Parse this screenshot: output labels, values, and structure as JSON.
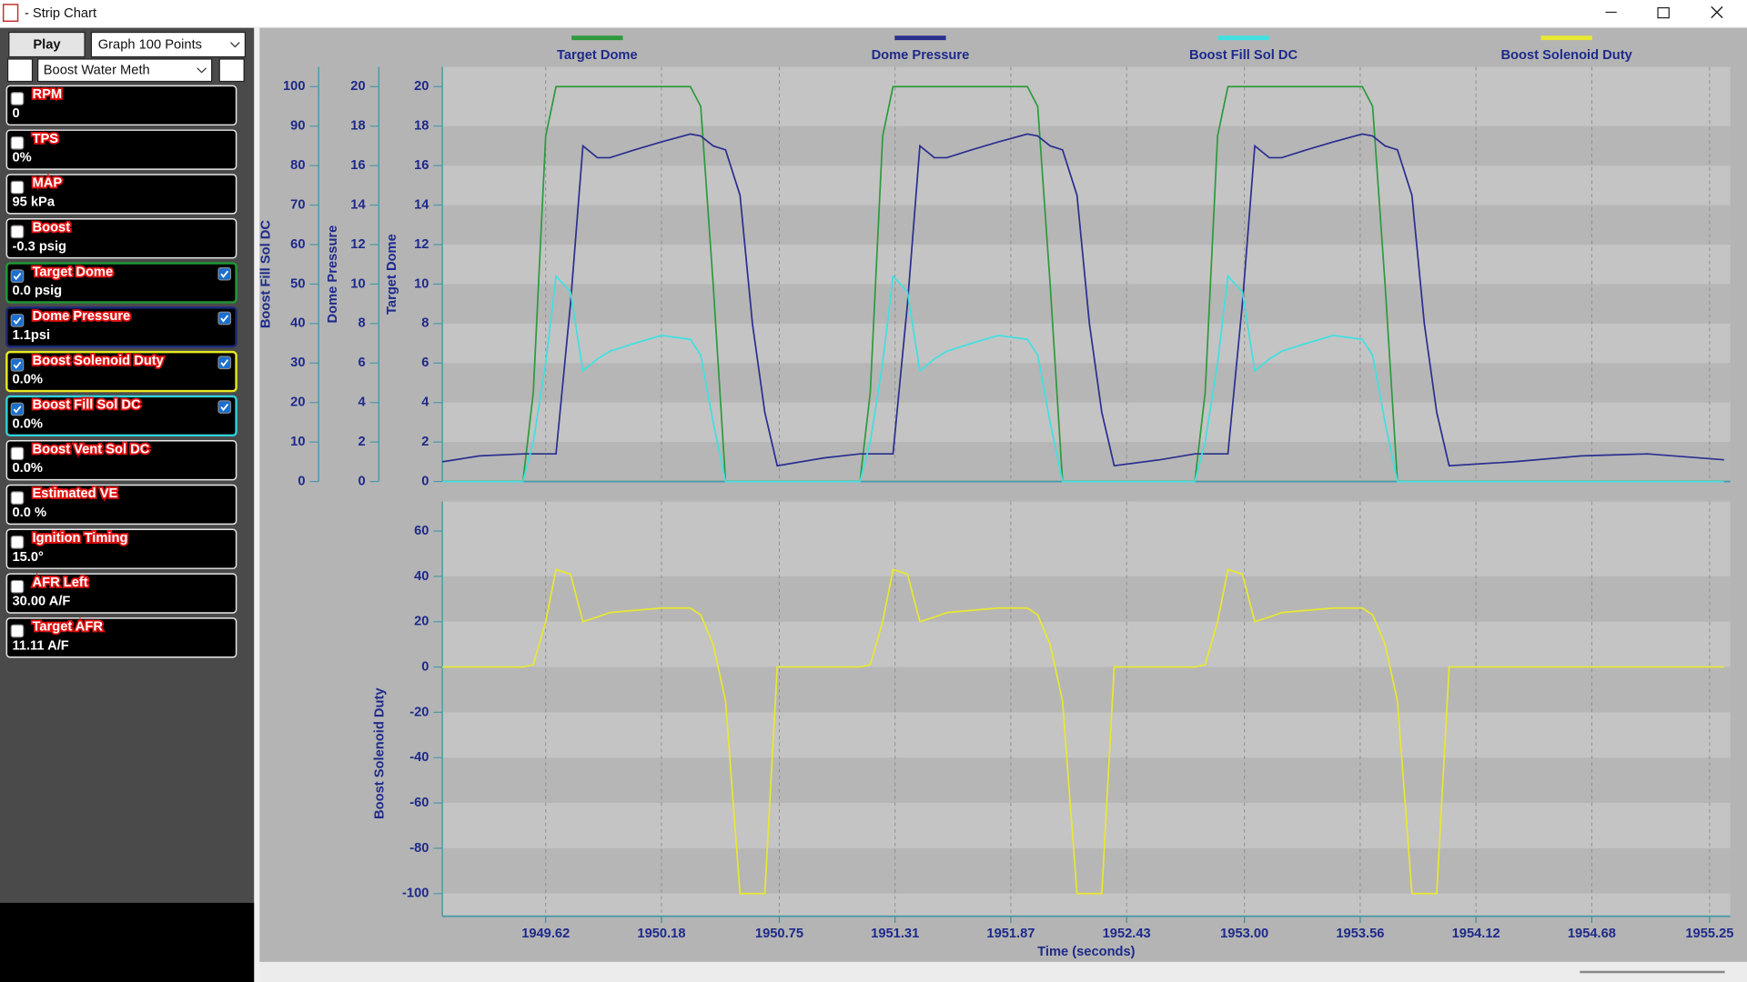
{
  "window": {
    "title": "- Strip Chart"
  },
  "sidebar": {
    "play": "Play",
    "points": "Graph 100 Points",
    "group": "Boost Water Meth",
    "channels": [
      {
        "name": "RPM",
        "value": "0",
        "checked": false,
        "color": "#e8e8e8"
      },
      {
        "name": "TPS",
        "value": "0%",
        "checked": false,
        "color": "#e8e8e8"
      },
      {
        "name": "MAP",
        "value": "95 kPa",
        "checked": false,
        "color": "#e8e8e8"
      },
      {
        "name": "Boost",
        "value": "-0.3 psig",
        "checked": false,
        "color": "#e8e8e8"
      },
      {
        "name": "Target Dome",
        "value": "0.0 psig",
        "checked": true,
        "color": "#1f9a35"
      },
      {
        "name": "Dome Pressure",
        "value": "1.1psi",
        "checked": true,
        "color": "#1c2a7a"
      },
      {
        "name": "Boost Solenoid Duty",
        "value": "0.0%",
        "checked": true,
        "color": "#e8e820"
      },
      {
        "name": "Boost Fill Sol DC",
        "value": "0.0%",
        "checked": true,
        "color": "#30d0d8"
      },
      {
        "name": "Boost Vent Sol DC",
        "value": "0.0%",
        "checked": false,
        "color": "#e8e8e8"
      },
      {
        "name": "Estimated VE",
        "value": "0.0 %",
        "checked": false,
        "color": "#e8e8e8"
      },
      {
        "name": "Ignition Timing",
        "value": "15.0°",
        "checked": false,
        "color": "#e8e8e8"
      },
      {
        "name": "AFR Left",
        "value": "30.00 A/F",
        "checked": false,
        "color": "#e8e8e8"
      },
      {
        "name": "Target AFR",
        "value": "11.11 A/F",
        "checked": false,
        "color": "#e8e8e8"
      }
    ]
  },
  "chart_data": [
    {
      "type": "line",
      "ylabel": "Target Dome",
      "y2label": "Dome Pressure",
      "y3label": "Boost Fill Sol DC",
      "xlim": [
        1949.12,
        1955.35
      ],
      "ylim": [
        0,
        21
      ],
      "yticks": [
        0,
        2,
        4,
        6,
        8,
        10,
        12,
        14,
        16,
        18,
        20
      ],
      "y2lim": [
        0,
        21
      ],
      "y2ticks": [
        0,
        2,
        4,
        6,
        8,
        10,
        12,
        14,
        16,
        18,
        20
      ],
      "y3lim": [
        0,
        105
      ],
      "y3ticks": [
        0,
        10,
        20,
        30,
        40,
        50,
        60,
        70,
        80,
        90,
        100
      ],
      "x": [
        1949.12,
        1949.3,
        1949.51,
        1949.56,
        1949.62,
        1949.67,
        1949.74,
        1949.8,
        1949.87,
        1949.93,
        1950.05,
        1950.18,
        1950.32,
        1950.37,
        1950.43,
        1950.49,
        1950.56,
        1950.62,
        1950.68,
        1950.74,
        1950.97,
        1951.14,
        1951.19,
        1951.25,
        1951.3,
        1951.37,
        1951.43,
        1951.5,
        1951.56,
        1951.68,
        1951.81,
        1951.95,
        1952.0,
        1952.06,
        1952.12,
        1952.19,
        1952.25,
        1952.31,
        1952.37,
        1952.59,
        1952.76,
        1952.81,
        1952.87,
        1952.92,
        1952.99,
        1953.05,
        1953.12,
        1953.18,
        1953.3,
        1953.43,
        1953.57,
        1953.62,
        1953.68,
        1953.74,
        1953.81,
        1953.87,
        1953.93,
        1953.99,
        1954.3,
        1954.63,
        1954.95,
        1955.32
      ],
      "series": [
        {
          "name": "Target Dome",
          "color": "#2e9a3e",
          "values": [
            0,
            0,
            0,
            4.5,
            17.5,
            20,
            20,
            20,
            20,
            20,
            20,
            20,
            20,
            19,
            10,
            0,
            0,
            0,
            0,
            0,
            0,
            0,
            4.5,
            17.5,
            20,
            20,
            20,
            20,
            20,
            20,
            20,
            20,
            19,
            10,
            0,
            0,
            0,
            0,
            0,
            0,
            0,
            4.5,
            17.5,
            20,
            20,
            20,
            20,
            20,
            20,
            20,
            20,
            19,
            10,
            0,
            0,
            0,
            0,
            0,
            0,
            0,
            0,
            0
          ]
        },
        {
          "name": "Dome Pressure",
          "color": "#2a2f8f",
          "axis": "y2",
          "values": [
            1.0,
            1.3,
            1.4,
            1.4,
            1.4,
            1.4,
            9,
            17,
            16.4,
            16.4,
            16.8,
            17.2,
            17.6,
            17.5,
            17,
            16.8,
            14.5,
            8,
            3.5,
            0.8,
            1.2,
            1.4,
            1.4,
            1.4,
            1.4,
            9,
            17,
            16.4,
            16.4,
            16.8,
            17.2,
            17.6,
            17.5,
            17,
            16.8,
            14.5,
            8,
            3.5,
            0.8,
            1.1,
            1.4,
            1.4,
            1.4,
            1.4,
            9,
            17,
            16.4,
            16.4,
            16.8,
            17.2,
            17.6,
            17.5,
            17,
            16.8,
            14.5,
            8,
            3.5,
            0.8,
            1.0,
            1.3,
            1.4,
            1.1
          ]
        },
        {
          "name": "Boost Fill Sol DC",
          "color": "#40e0e0",
          "axis": "y3",
          "values": [
            0,
            0,
            0,
            10,
            30,
            52,
            48,
            28,
            31,
            33,
            35,
            37,
            36,
            32,
            15,
            0,
            0,
            0,
            0,
            0,
            0,
            0,
            10,
            30,
            52,
            48,
            28,
            31,
            33,
            35,
            37,
            36,
            32,
            15,
            0,
            0,
            0,
            0,
            0,
            0,
            0,
            10,
            30,
            52,
            48,
            28,
            31,
            33,
            35,
            37,
            36,
            32,
            15,
            0,
            0,
            0,
            0,
            0,
            0,
            0,
            0,
            0
          ]
        }
      ]
    },
    {
      "type": "line",
      "ylabel": "Boost Solenoid Duty",
      "xlabel": "Time (seconds)",
      "xlim": [
        1949.12,
        1955.35
      ],
      "xticks": [
        1949.62,
        1950.18,
        1950.75,
        1951.31,
        1951.87,
        1952.43,
        {
          "value": 1953,
          "label": "1953.00"
        },
        1953.56,
        1954.12,
        1954.68,
        1955.25
      ],
      "ylim": [
        -110,
        73
      ],
      "yticks": [
        -100,
        -80,
        -60,
        -40,
        -20,
        0,
        20,
        40,
        60
      ],
      "x": [
        1949.12,
        1949.3,
        1949.51,
        1949.56,
        1949.62,
        1949.67,
        1949.74,
        1949.8,
        1949.87,
        1949.93,
        1950.05,
        1950.18,
        1950.32,
        1950.37,
        1950.43,
        1950.49,
        1950.56,
        1950.62,
        1950.68,
        1950.74,
        1950.97,
        1951.14,
        1951.19,
        1951.25,
        1951.3,
        1951.37,
        1951.43,
        1951.5,
        1951.56,
        1951.68,
        1951.81,
        1951.95,
        1952.0,
        1952.06,
        1952.12,
        1952.19,
        1952.25,
        1952.31,
        1952.37,
        1952.59,
        1952.76,
        1952.81,
        1952.87,
        1952.92,
        1952.99,
        1953.05,
        1953.12,
        1953.18,
        1953.3,
        1953.43,
        1953.57,
        1953.62,
        1953.68,
        1953.74,
        1953.81,
        1953.87,
        1953.93,
        1953.99,
        1954.3,
        1954.63,
        1954.95,
        1955.32
      ],
      "series": [
        {
          "name": "Boost Solenoid Duty",
          "color": "#e8e830",
          "values": [
            0,
            0,
            0,
            1,
            20,
            43,
            41,
            20,
            22,
            24,
            25,
            26,
            26,
            23,
            10,
            -15,
            -100,
            -100,
            -100,
            0,
            0,
            0,
            1,
            20,
            43,
            41,
            20,
            22,
            24,
            25,
            26,
            26,
            23,
            10,
            -15,
            -100,
            -100,
            -100,
            0,
            0,
            0,
            1,
            20,
            43,
            41,
            20,
            22,
            24,
            25,
            26,
            26,
            23,
            10,
            -15,
            -100,
            -100,
            -100,
            0,
            0,
            0,
            0,
            0
          ]
        }
      ]
    }
  ]
}
